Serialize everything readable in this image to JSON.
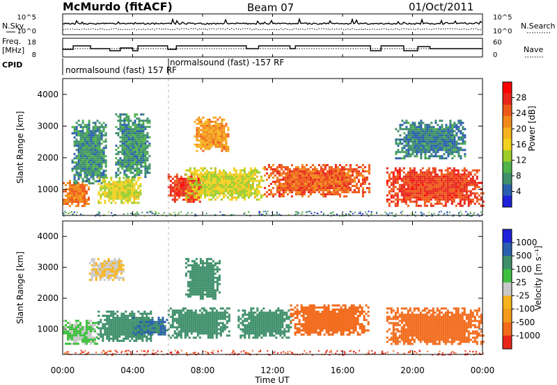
{
  "header": {
    "station": "McMurdo (fitACF)",
    "beam": "Beam 07",
    "date": "01/Oct/2011"
  },
  "top_panels": {
    "nsky_label": "N.Sky",
    "nsearch_label": "N.Search",
    "nsky_ticks": [
      "10^5",
      "10^0"
    ],
    "nsearch_ticks": [
      "10^5",
      "10^0"
    ],
    "freq_label": "Freq.",
    "freq_unit": "[MHz]",
    "freq_ticks": [
      "18",
      "8"
    ],
    "nave_label": "Nave",
    "nave_ticks": [
      "60",
      "0"
    ],
    "cpid_label": "CPID",
    "cpid_text_1": "normalsound (fast) 157 RF",
    "cpid_text_2": "normalsound (fast) -157 RF"
  },
  "x_axis": {
    "label": "Time UT",
    "ticks": [
      "00:00",
      "04:00",
      "08:00",
      "12:00",
      "16:00",
      "20:00",
      "00:00"
    ]
  },
  "power_panel": {
    "ylabel": "Slant Range [km]",
    "yticks": [
      "1000",
      "2000",
      "3000",
      "4000"
    ],
    "colorbar_label": "Power [dB]",
    "colorbar_ticks": [
      "4",
      "8",
      "12",
      "16",
      "20",
      "24",
      "28"
    ]
  },
  "velocity_panel": {
    "ylabel": "Slant Range [km]",
    "yticks": [
      "1000",
      "2000",
      "3000",
      "4000"
    ],
    "colorbar_label": "Velocity [m s⁻¹]",
    "colorbar_ticks": [
      "1000",
      "500",
      "100",
      "25",
      "-25",
      "-100",
      "-500",
      "-1000"
    ]
  },
  "colors": {
    "power_scale": [
      "#1f22d8",
      "#2a5fae",
      "#3e8f6a",
      "#4fb34a",
      "#9ccd2a",
      "#f2d21f",
      "#f6b21c",
      "#f28a1b",
      "#ee5a1a",
      "#e8271a",
      "#ff0000"
    ],
    "velocity_scale": [
      "#e8271a",
      "#f26a1b",
      "#f49a1c",
      "#f6b21c",
      "#c8c8c8",
      "#3fbf3f",
      "#3e8f6a",
      "#2a5fae",
      "#1f22d8"
    ]
  },
  "chart_data": [
    {
      "type": "heatmap",
      "title": "Power",
      "ylabel": "Slant Range [km]",
      "xlabel": "Time UT",
      "x_range_hours": [
        0,
        24
      ],
      "y_range_km": [
        180,
        4500
      ],
      "colorbar": {
        "label": "Power [dB]",
        "range": [
          0,
          30
        ],
        "ticks": [
          4,
          8,
          12,
          16,
          20,
          24,
          28
        ]
      },
      "regions": [
        {
          "t0": 0.0,
          "t1": 1.5,
          "r0": 500,
          "r1": 1300,
          "value": 22
        },
        {
          "t0": 0.5,
          "t1": 2.5,
          "r0": 1200,
          "r1": 3200,
          "value": 6
        },
        {
          "t0": 2.0,
          "t1": 4.5,
          "r0": 600,
          "r1": 1400,
          "value": 14
        },
        {
          "t0": 3.0,
          "t1": 5.0,
          "r0": 1400,
          "r1": 3400,
          "value": 6
        },
        {
          "t0": 6.0,
          "t1": 8.0,
          "r0": 600,
          "r1": 1500,
          "value": 26
        },
        {
          "t0": 7.5,
          "t1": 9.5,
          "r0": 2200,
          "r1": 3300,
          "value": 20
        },
        {
          "t0": 7.0,
          "t1": 11.5,
          "r0": 700,
          "r1": 1700,
          "value": 14
        },
        {
          "t0": 11.5,
          "t1": 17.5,
          "r0": 800,
          "r1": 1800,
          "value": 24
        },
        {
          "t0": 18.5,
          "t1": 24.0,
          "r0": 500,
          "r1": 1700,
          "value": 26
        },
        {
          "t0": 19.0,
          "t1": 23.0,
          "r0": 2000,
          "r1": 3200,
          "value": 5
        }
      ]
    },
    {
      "type": "heatmap",
      "title": "Velocity",
      "ylabel": "Slant Range [km]",
      "xlabel": "Time UT",
      "x_range_hours": [
        0,
        24
      ],
      "y_range_km": [
        180,
        4500
      ],
      "colorbar": {
        "label": "Velocity [m s⁻¹]",
        "range": [
          -1000,
          1000
        ],
        "ticks": [
          1000,
          500,
          100,
          25,
          -25,
          -100,
          -500,
          -1000
        ]
      },
      "regions": [
        {
          "t0": 0.0,
          "t1": 2.0,
          "r0": 500,
          "r1": 1300,
          "value": 30
        },
        {
          "t0": 1.5,
          "t1": 3.5,
          "r0": 2600,
          "r1": 3300,
          "value": 0
        },
        {
          "t0": 2.0,
          "t1": 5.0,
          "r0": 600,
          "r1": 1600,
          "value": 150
        },
        {
          "t0": 4.0,
          "t1": 6.0,
          "r0": 800,
          "r1": 1400,
          "value": 500
        },
        {
          "t0": 6.0,
          "t1": 9.5,
          "r0": 700,
          "r1": 1700,
          "value": 200
        },
        {
          "t0": 7.0,
          "t1": 9.0,
          "r0": 2000,
          "r1": 3300,
          "value": 150
        },
        {
          "t0": 10.0,
          "t1": 13.0,
          "r0": 700,
          "r1": 1700,
          "value": 120
        },
        {
          "t0": 13.0,
          "t1": 17.5,
          "r0": 800,
          "r1": 1800,
          "value": -150
        },
        {
          "t0": 18.5,
          "t1": 24.0,
          "r0": 500,
          "r1": 1700,
          "value": -120
        }
      ]
    }
  ]
}
